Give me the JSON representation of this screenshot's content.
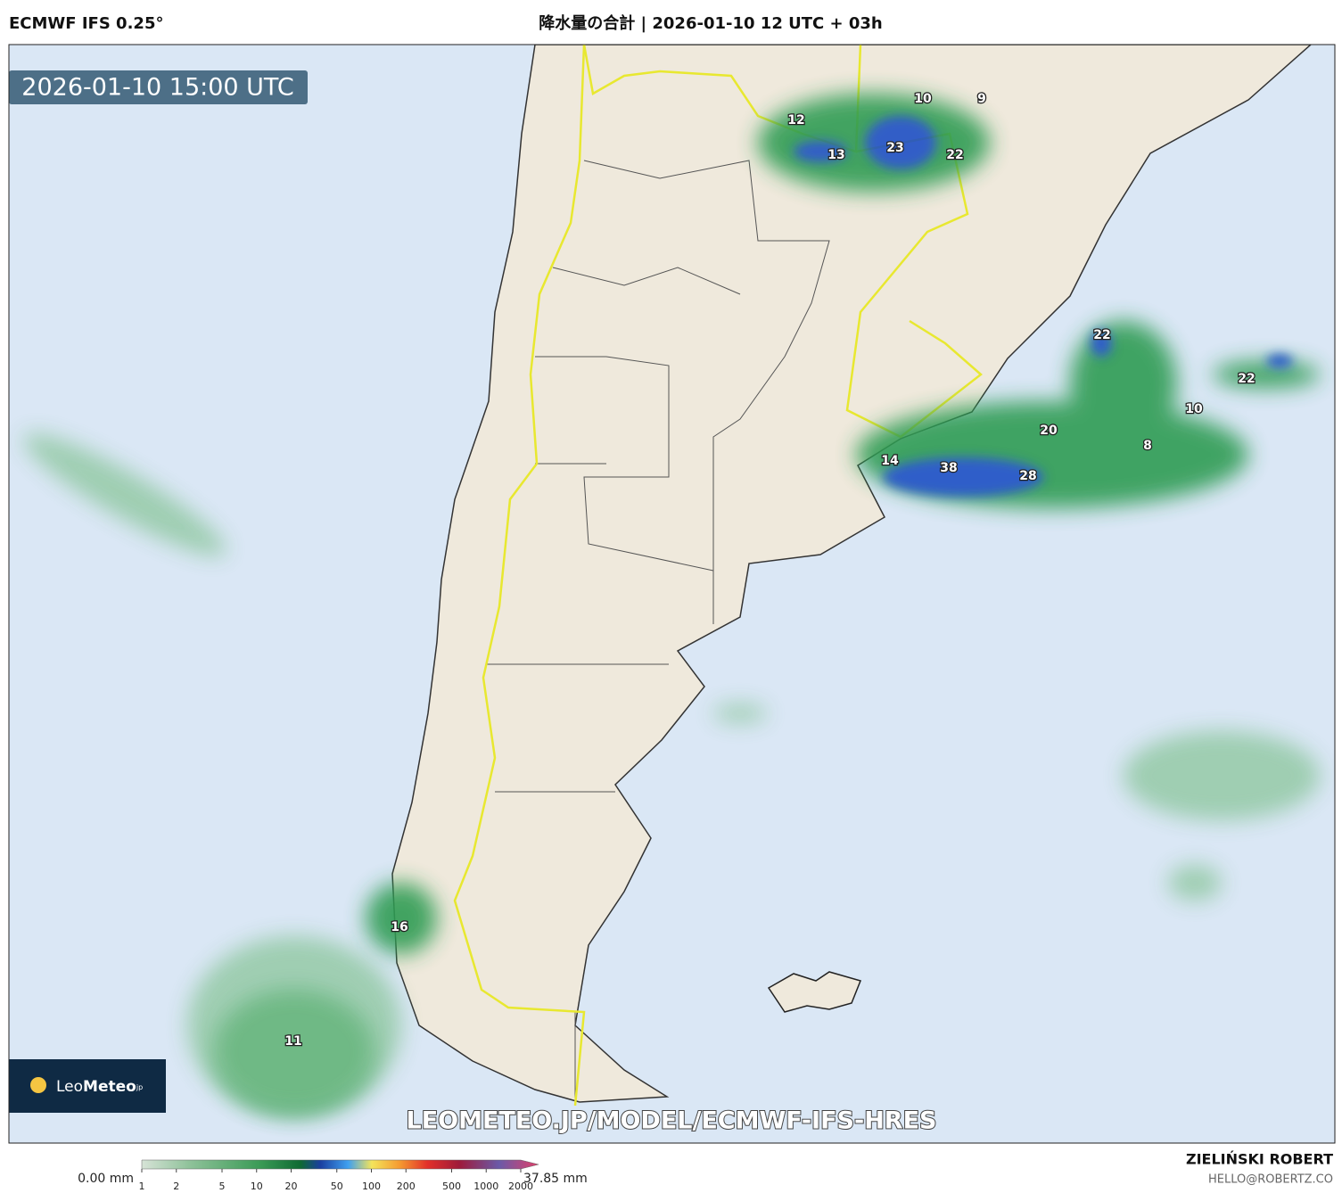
{
  "header": {
    "model": "ECMWF IFS 0.25°",
    "title": "降水量の合計 | 2026-01-10 12 UTC + 03h"
  },
  "map": {
    "valid_time": "2026-01-10 15:00 UTC",
    "watermark": "LEOMETEO.JP/MODEL/ECMWF-IFS-HRES",
    "labels": [
      12,
      10,
      9,
      13,
      23,
      22,
      22,
      22,
      10,
      20,
      8,
      14,
      38,
      28,
      16,
      11
    ]
  },
  "logo": {
    "light": "Leo",
    "bold": "Meteo",
    "suffix": "jp"
  },
  "legend": {
    "min_label": "0.00 mm",
    "max_label": "37.85 mm",
    "scale": "log",
    "range": [
      1,
      2000
    ],
    "ticks": [
      1,
      2,
      5,
      10,
      20,
      50,
      100,
      200,
      500,
      1000,
      2000
    ]
  },
  "footer": {
    "author": "ZIELIŃSKI ROBERT",
    "email": "HELLO@ROBERTZ.CO"
  }
}
